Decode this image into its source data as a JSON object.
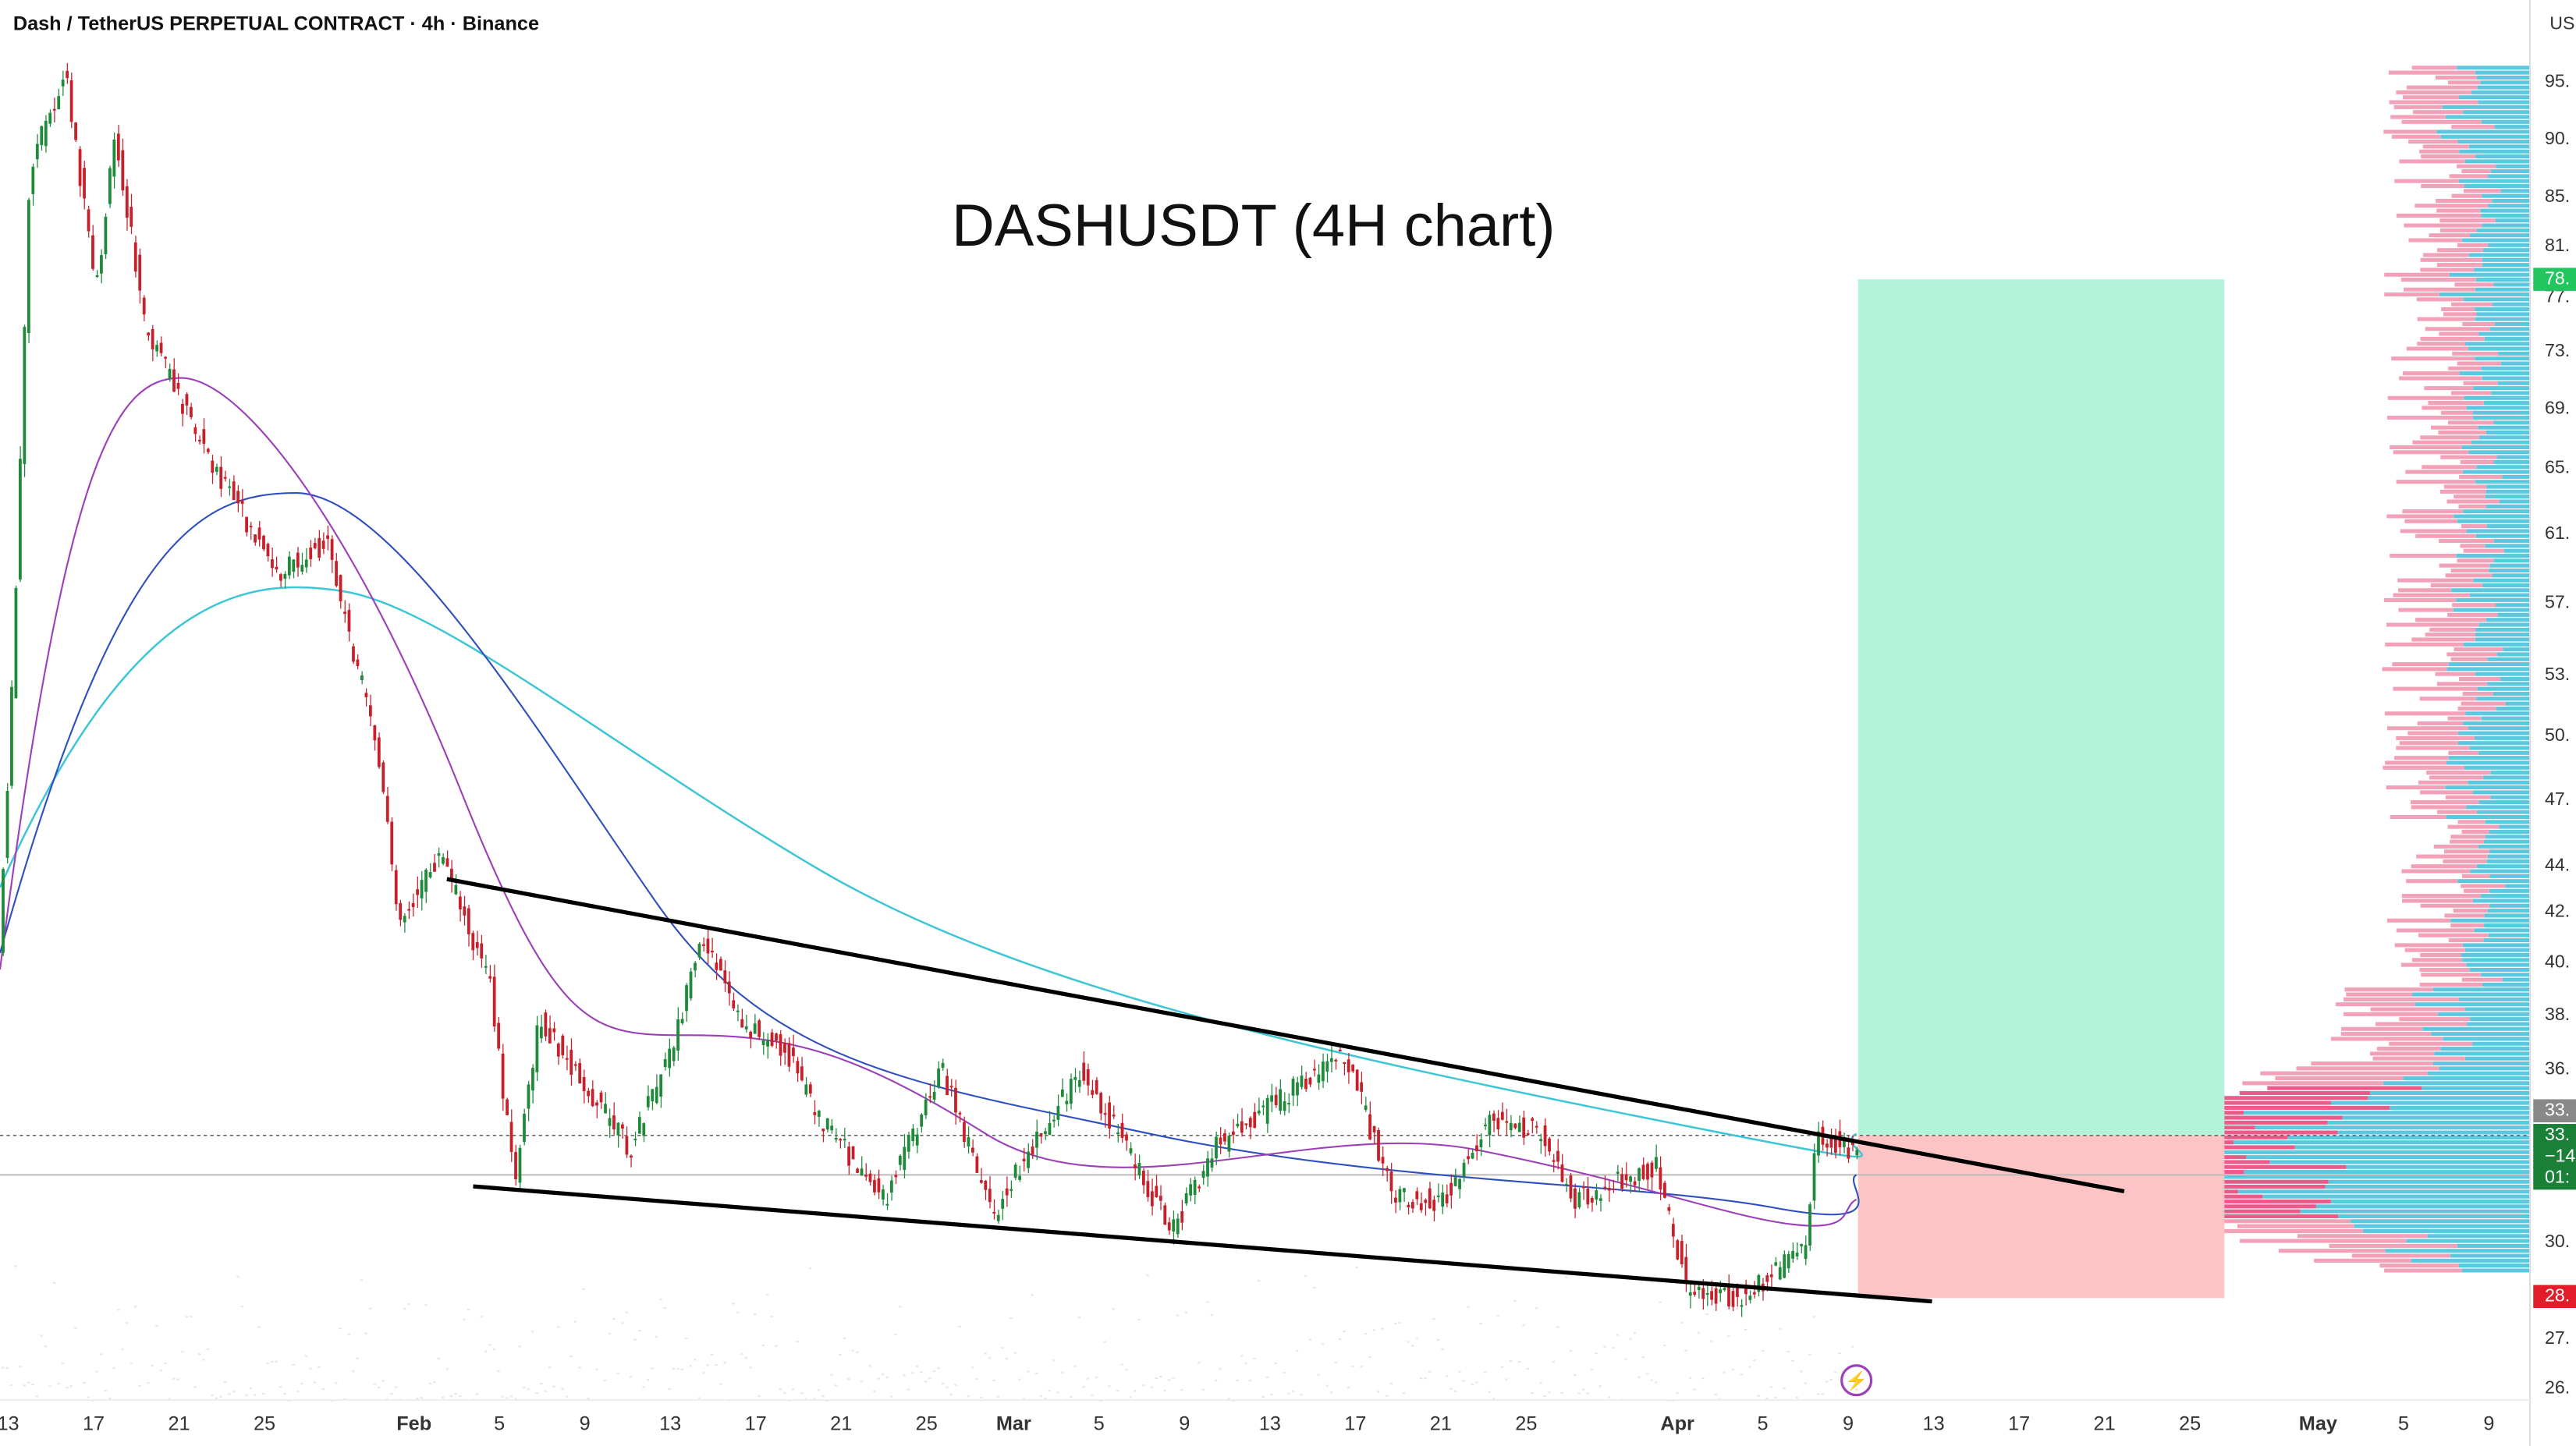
{
  "header": {
    "symbol": "Dash / TetherUS PERPETUAL CONTRACT · 4h · Binance",
    "currency": "US"
  },
  "title": "DASHUSDT (4H chart)",
  "x_axis": {
    "labels": [
      "13",
      "17",
      "21",
      "25",
      "Feb",
      "5",
      "9",
      "13",
      "17",
      "21",
      "25",
      "Mar",
      "5",
      "9",
      "13",
      "17",
      "21",
      "25",
      "Apr",
      "5",
      "9",
      "13",
      "17",
      "21",
      "25",
      "May",
      "5",
      "9"
    ]
  },
  "price_axis": {
    "labels": [
      "95.",
      "90.",
      "85.",
      "81.",
      "77.",
      "73.",
      "69.",
      "65.",
      "61.",
      "57.",
      "53.",
      "50.",
      "47.",
      "44.",
      "42.",
      "40.",
      "38.",
      "36.",
      "30.",
      "27.",
      "26."
    ]
  },
  "tags": [
    "78.",
    "33.",
    "33.",
    "−14",
    "01:",
    "28."
  ]
}
